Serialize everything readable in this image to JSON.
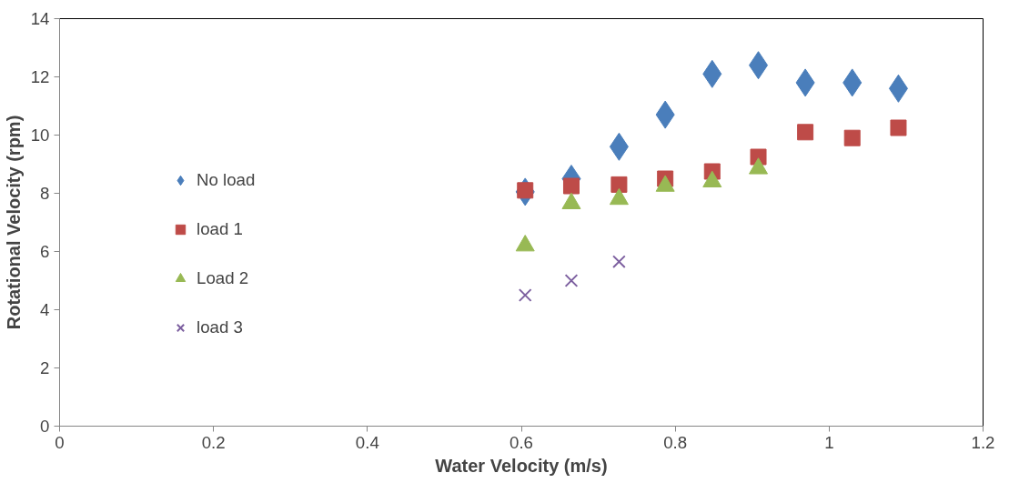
{
  "chart_data": {
    "type": "scatter",
    "xlabel": "Water Velocity (m/s)",
    "ylabel": "Rotational Velocity (rpm)",
    "xlim": [
      0,
      1.2
    ],
    "xticks": [
      0,
      0.2,
      0.4,
      0.6,
      0.8,
      1,
      1.2
    ],
    "ylim": [
      0,
      14
    ],
    "yticks": [
      0,
      2,
      4,
      6,
      8,
      10,
      12,
      14
    ],
    "grid": false,
    "legend": "left",
    "series": [
      {
        "name": "No load",
        "color": "#4a7ebb",
        "marker": "diamond",
        "x": [
          0.605,
          0.665,
          0.727,
          0.787,
          0.848,
          0.908,
          0.969,
          1.03,
          1.09
        ],
        "values": [
          8.05,
          8.5,
          9.6,
          10.7,
          12.1,
          12.4,
          11.8,
          11.8,
          11.6
        ]
      },
      {
        "name": "load 1",
        "color": "#be4b48",
        "marker": "square",
        "x": [
          0.605,
          0.665,
          0.727,
          0.787,
          0.848,
          0.908,
          0.969,
          1.03,
          1.09
        ],
        "values": [
          8.1,
          8.25,
          8.3,
          8.5,
          8.75,
          9.25,
          10.1,
          9.9,
          10.25
        ]
      },
      {
        "name": "Load 2",
        "color": "#98b954",
        "marker": "triangle",
        "x": [
          0.605,
          0.665,
          0.727,
          0.787,
          0.848,
          0.908
        ],
        "values": [
          6.2,
          7.65,
          7.8,
          8.25,
          8.4,
          8.85
        ]
      },
      {
        "name": "load 3",
        "color": "#7d60a0",
        "marker": "cross",
        "x": [
          0.605,
          0.665,
          0.727
        ],
        "values": [
          4.5,
          5.0,
          5.65
        ]
      }
    ]
  }
}
